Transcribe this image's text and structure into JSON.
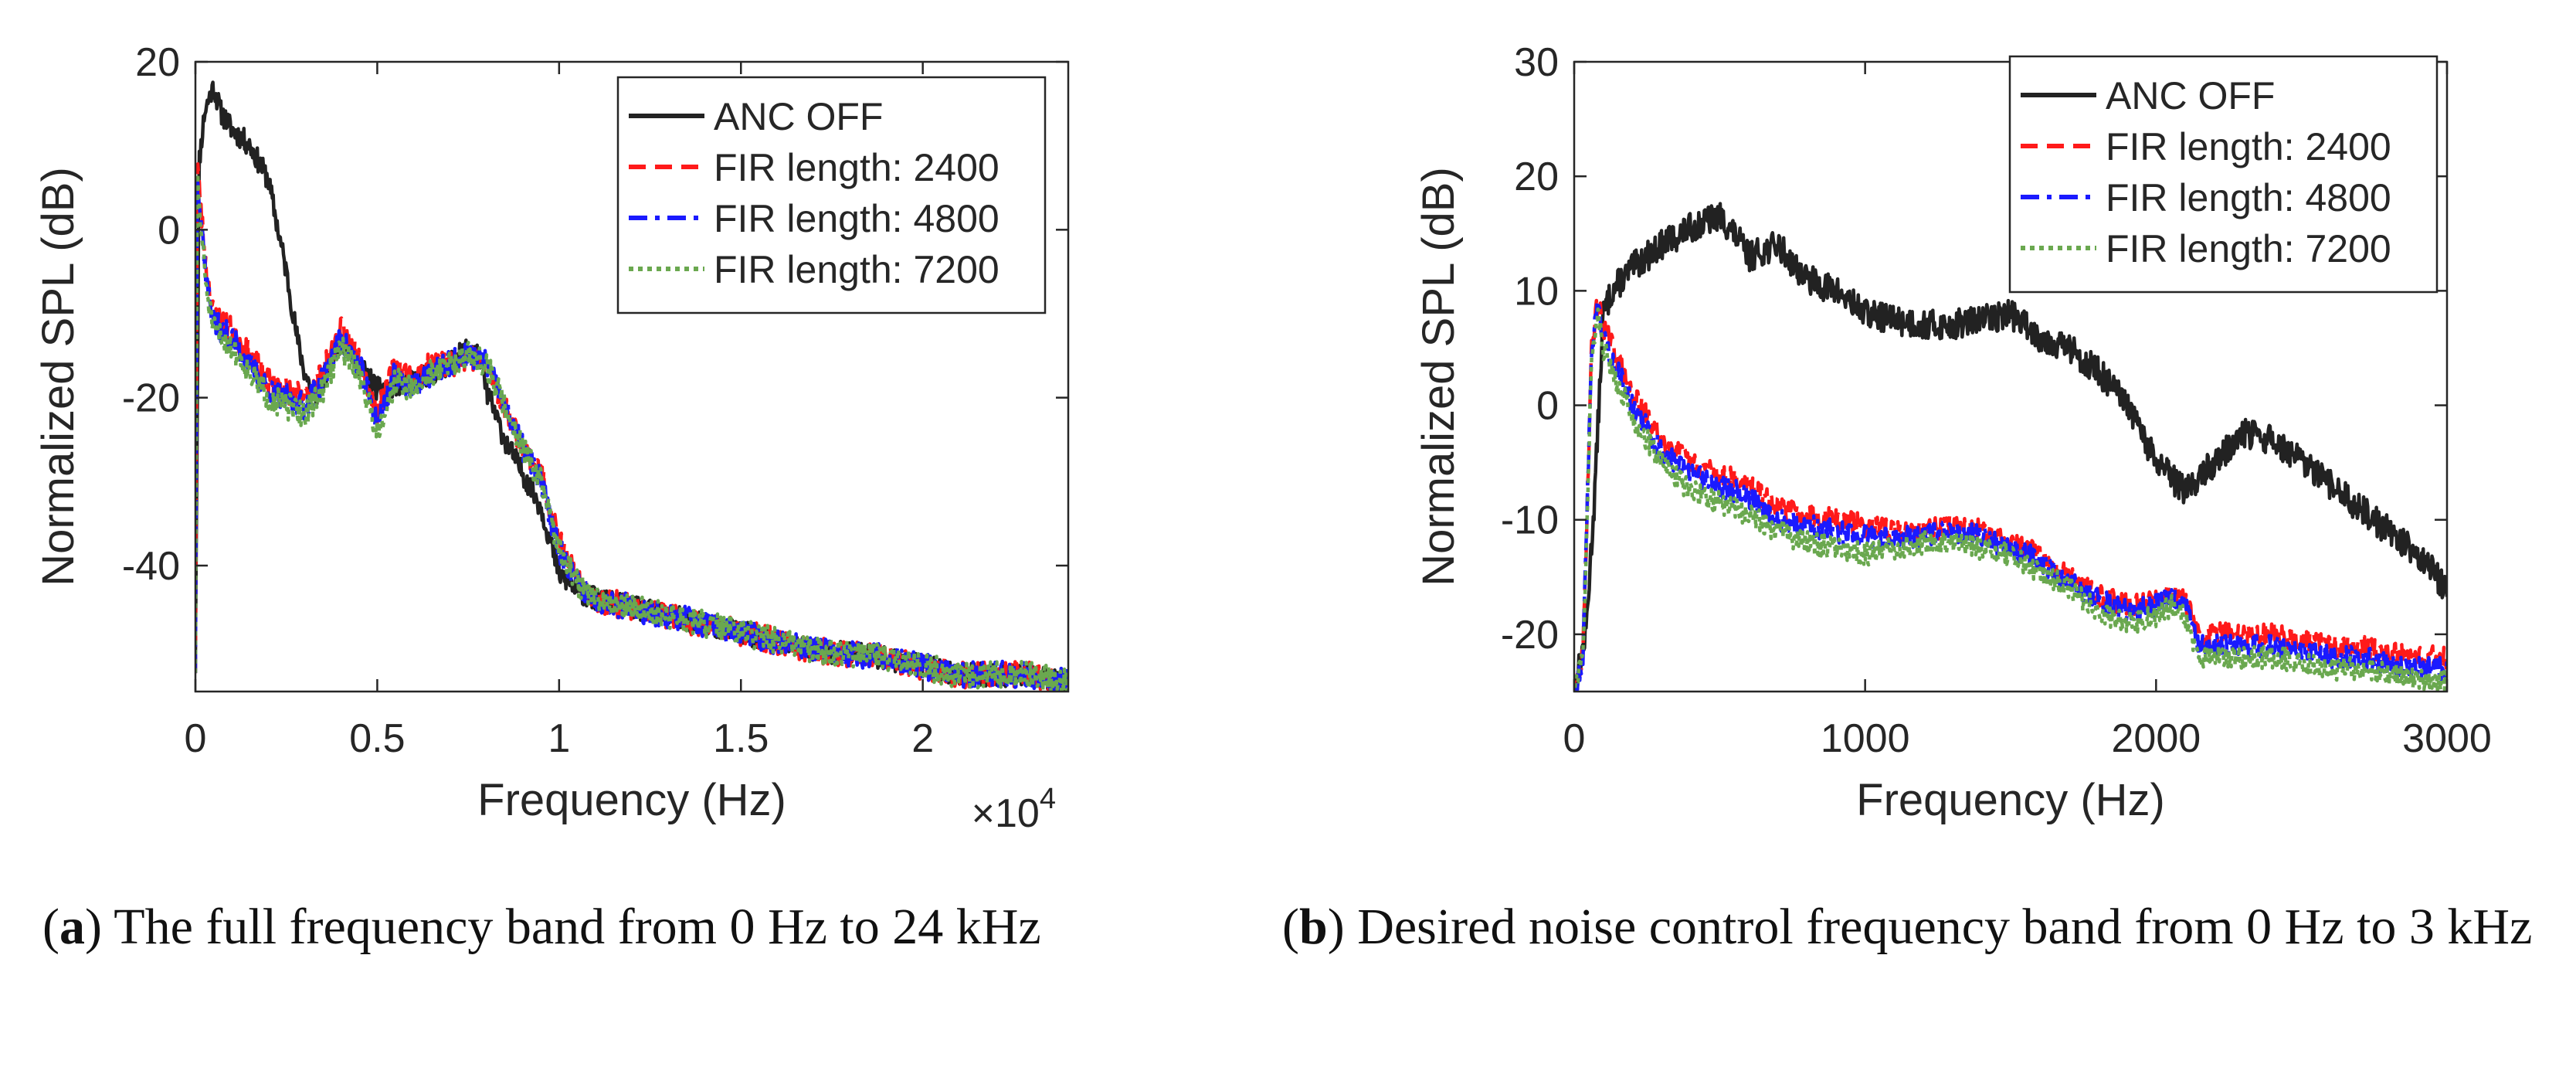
{
  "chart_data": [
    {
      "type": "line",
      "title": "",
      "xlabel": "Frequency (Hz)",
      "ylabel": "Normalized SPL (dB)",
      "xlim": [
        0,
        24000
      ],
      "ylim": [
        -55,
        20
      ],
      "x_ticks": [
        0,
        5000,
        10000,
        15000,
        20000
      ],
      "x_tick_labels": [
        "0",
        "0.5",
        "1",
        "1.5",
        "2"
      ],
      "x_multiplier": {
        "base": "×10",
        "exp": "4"
      },
      "y_ticks": [
        -40,
        -20,
        0,
        20
      ],
      "y_tick_labels": [
        "-40",
        "-20",
        "0",
        "20"
      ],
      "grid": false,
      "legend_position": "top-right",
      "series": [
        {
          "name": "ANC OFF",
          "color": "#222222",
          "style": "solid",
          "noise": 1.4,
          "seed": 11,
          "x": [
            0,
            100,
            250,
            400,
            500,
            700,
            1000,
            1500,
            2000,
            2500,
            2800,
            3000,
            3300,
            4000,
            4500,
            5000,
            6000,
            7000,
            7500,
            7800,
            8000,
            8500,
            9000,
            9500,
            10000,
            10500,
            11000,
            13000,
            15000,
            17000,
            19000,
            21000,
            23000,
            24000
          ],
          "y": [
            -50,
            8,
            14,
            16,
            17,
            14,
            12,
            10,
            6,
            -5,
            -13,
            -17,
            -20,
            -13,
            -16,
            -19,
            -18,
            -16,
            -14,
            -15,
            -19,
            -25,
            -29,
            -33,
            -41,
            -43,
            -44,
            -46,
            -48,
            -50,
            -51,
            -53,
            -53,
            -54
          ]
        },
        {
          "name": "FIR length: 2400",
          "color": "#ff1a1a",
          "style": "dashed",
          "noise": 1.6,
          "seed": 23,
          "x": [
            0,
            50,
            100,
            300,
            500,
            1000,
            1500,
            2000,
            2500,
            3000,
            3500,
            4000,
            4500,
            5000,
            5500,
            6000,
            6500,
            7000,
            7500,
            8000,
            8500,
            9000,
            9500,
            10000,
            10500,
            11000,
            13000,
            15000,
            17000,
            19000,
            21000,
            23000,
            24000
          ],
          "y": [
            -52,
            9,
            5,
            -5,
            -10,
            -12,
            -15,
            -18,
            -19,
            -20,
            -17,
            -12,
            -15,
            -22,
            -16,
            -18,
            -16,
            -16,
            -15,
            -16,
            -21,
            -26,
            -29,
            -37,
            -42,
            -44,
            -46,
            -48,
            -50,
            -51,
            -53,
            -53,
            -54
          ]
        },
        {
          "name": "FIR length: 4800",
          "color": "#1a1aff",
          "style": "dashdot",
          "noise": 1.6,
          "seed": 37,
          "x": [
            0,
            50,
            100,
            300,
            500,
            1000,
            1500,
            2000,
            2500,
            3000,
            3500,
            4000,
            4500,
            5000,
            5500,
            6000,
            6500,
            7000,
            7500,
            8000,
            8500,
            9000,
            9500,
            10000,
            10500,
            11000,
            13000,
            15000,
            17000,
            19000,
            21000,
            23000,
            24000
          ],
          "y": [
            -52,
            8.5,
            4,
            -6,
            -11,
            -13,
            -16,
            -19,
            -20,
            -21,
            -18,
            -13,
            -16,
            -23,
            -17,
            -19,
            -17,
            -16,
            -15,
            -16,
            -21,
            -26,
            -30,
            -38,
            -42,
            -44,
            -46,
            -48,
            -50,
            -51,
            -53,
            -53,
            -54
          ]
        },
        {
          "name": "FIR length: 7200",
          "color": "#6aa84f",
          "style": "dotted",
          "noise": 1.6,
          "seed": 51,
          "x": [
            0,
            50,
            100,
            300,
            500,
            1000,
            1500,
            2000,
            2500,
            3000,
            3500,
            4000,
            4500,
            5000,
            5500,
            6000,
            6500,
            7000,
            7500,
            8000,
            8500,
            9000,
            9500,
            10000,
            10500,
            11000,
            13000,
            15000,
            17000,
            19000,
            21000,
            23000,
            24000
          ],
          "y": [
            -52,
            8,
            3,
            -7,
            -12,
            -14,
            -17,
            -20,
            -21,
            -22,
            -19,
            -14,
            -17,
            -24,
            -18,
            -19,
            -17,
            -16,
            -15,
            -16,
            -21,
            -26,
            -30,
            -38,
            -42,
            -44,
            -46,
            -48,
            -50,
            -51,
            -53,
            -53,
            -54
          ]
        }
      ]
    },
    {
      "type": "line",
      "title": "",
      "xlabel": "Frequency (Hz)",
      "ylabel": "Normalized SPL (dB)",
      "xlim": [
        0,
        3000
      ],
      "ylim": [
        -25,
        30
      ],
      "x_ticks": [
        0,
        1000,
        2000,
        3000
      ],
      "x_tick_labels": [
        "0",
        "1000",
        "2000",
        "3000"
      ],
      "y_ticks": [
        -20,
        -10,
        0,
        10,
        20,
        30
      ],
      "y_tick_labels": [
        "-20",
        "-10",
        "0",
        "10",
        "20",
        "30"
      ],
      "grid": false,
      "legend_position": "top-right",
      "series": [
        {
          "name": "ANC OFF",
          "color": "#222222",
          "style": "solid",
          "noise": 1.3,
          "seed": 13,
          "x": [
            0,
            40,
            70,
            100,
            130,
            200,
            300,
            400,
            500,
            550,
            600,
            700,
            800,
            900,
            1000,
            1100,
            1200,
            1300,
            1400,
            1500,
            1600,
            1700,
            1800,
            1900,
            2000,
            2100,
            2200,
            2300,
            2400,
            2500,
            2600,
            2700,
            2800,
            2900,
            3000
          ],
          "y": [
            -25,
            -20,
            -8,
            8,
            10,
            12,
            14,
            15.5,
            16.5,
            15,
            13,
            14,
            11,
            10,
            8,
            7.5,
            7,
            7,
            7.5,
            8,
            6,
            5,
            3,
            0,
            -5,
            -7.5,
            -5,
            -2.5,
            -3,
            -5,
            -7,
            -9,
            -11,
            -13,
            -16
          ]
        },
        {
          "name": "FIR length: 2400",
          "color": "#ff1a1a",
          "style": "dashed",
          "noise": 1.0,
          "seed": 29,
          "x": [
            0,
            30,
            60,
            80,
            100,
            200,
            300,
            400,
            500,
            600,
            700,
            800,
            900,
            1000,
            1100,
            1200,
            1300,
            1400,
            1500,
            1600,
            1700,
            1800,
            1900,
            2000,
            2050,
            2100,
            2150,
            2200,
            2300,
            2400,
            2500,
            2600,
            2700,
            2800,
            2900,
            3000
          ],
          "y": [
            -25,
            -22,
            5,
            9,
            7,
            1,
            -3,
            -5,
            -6,
            -7,
            -9,
            -9.5,
            -10,
            -10.5,
            -11,
            -11,
            -10.5,
            -11,
            -12,
            -13,
            -15,
            -16.5,
            -17.5,
            -17,
            -16,
            -17,
            -20.5,
            -20,
            -20,
            -20,
            -20.5,
            -21,
            -21,
            -21.5,
            -22,
            -22
          ]
        },
        {
          "name": "FIR length: 4800",
          "color": "#1a1aff",
          "style": "dashdot",
          "noise": 1.0,
          "seed": 43,
          "x": [
            0,
            30,
            60,
            80,
            100,
            200,
            300,
            400,
            500,
            600,
            700,
            800,
            900,
            1000,
            1100,
            1200,
            1300,
            1400,
            1500,
            1600,
            1700,
            1800,
            1900,
            2000,
            2050,
            2100,
            2150,
            2200,
            2300,
            2400,
            2500,
            2600,
            2700,
            2800,
            2900,
            3000
          ],
          "y": [
            -25,
            -22,
            5,
            9,
            6,
            0,
            -4,
            -6,
            -7,
            -8,
            -10,
            -10.5,
            -11,
            -11.5,
            -11.5,
            -11.5,
            -11,
            -11.5,
            -12.5,
            -13.5,
            -15.5,
            -17,
            -18,
            -17.5,
            -16.5,
            -17.5,
            -21,
            -21,
            -21,
            -21,
            -21.5,
            -22,
            -22,
            -22.5,
            -23,
            -23
          ]
        },
        {
          "name": "FIR length: 7200",
          "color": "#6aa84f",
          "style": "dotted",
          "noise": 1.0,
          "seed": 57,
          "x": [
            0,
            30,
            60,
            80,
            100,
            200,
            300,
            400,
            500,
            600,
            700,
            800,
            900,
            1000,
            1100,
            1200,
            1300,
            1400,
            1500,
            1600,
            1700,
            1800,
            1900,
            2000,
            2050,
            2100,
            2150,
            2200,
            2300,
            2400,
            2500,
            2600,
            2700,
            2800,
            2900,
            3000
          ],
          "y": [
            -25,
            -22,
            4,
            8,
            5,
            -1,
            -5,
            -7.5,
            -8.5,
            -9.5,
            -11,
            -12,
            -12.5,
            -13,
            -12.5,
            -12,
            -12,
            -12.5,
            -13,
            -14.5,
            -16,
            -18,
            -19,
            -18.5,
            -17.5,
            -18.5,
            -22,
            -22,
            -22,
            -22,
            -22.5,
            -23,
            -23,
            -23.5,
            -24,
            -24
          ]
        }
      ]
    }
  ],
  "captions": [
    {
      "label": "a",
      "text": " The full frequency band from 0 Hz to 24 kHz"
    },
    {
      "label": "b",
      "text": " Desired noise control frequency band from 0 Hz to 3 kHz"
    }
  ]
}
